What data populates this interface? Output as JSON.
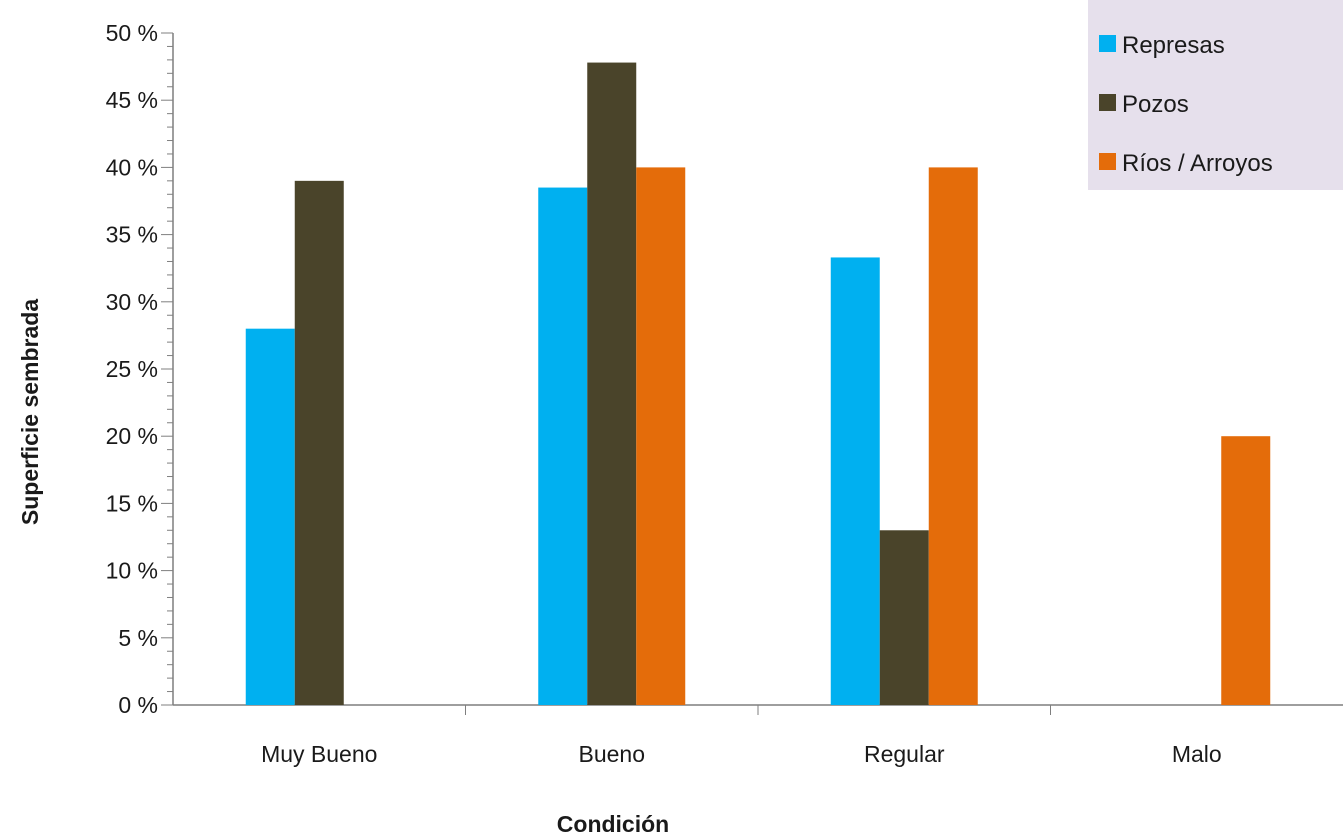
{
  "chart_data": {
    "type": "bar",
    "categories": [
      "Muy Bueno",
      "Bueno",
      "Regular",
      "Malo"
    ],
    "series": [
      {
        "name": "Represas",
        "color": "#00b0f0",
        "values": [
          28,
          38.5,
          33.3,
          0
        ]
      },
      {
        "name": "Pozos",
        "color": "#4a442a",
        "values": [
          39,
          47.8,
          13,
          0
        ]
      },
      {
        "name": "Ríos / Arroyos",
        "color": "#e46c0a",
        "values": [
          0,
          40,
          40,
          20
        ]
      }
    ],
    "title": "",
    "xlabel": "Condición",
    "ylabel": "Superficie sembrada",
    "ylim": [
      0,
      50
    ],
    "yticks": [
      "0 %",
      "5 %",
      "10 %",
      "15 %",
      "20 %",
      "25 %",
      "30 %",
      "35 %",
      "40 %",
      "45 %",
      "50 %"
    ],
    "grid": false,
    "legend": {
      "position": "top-right",
      "background": "#e6e0ec"
    }
  }
}
